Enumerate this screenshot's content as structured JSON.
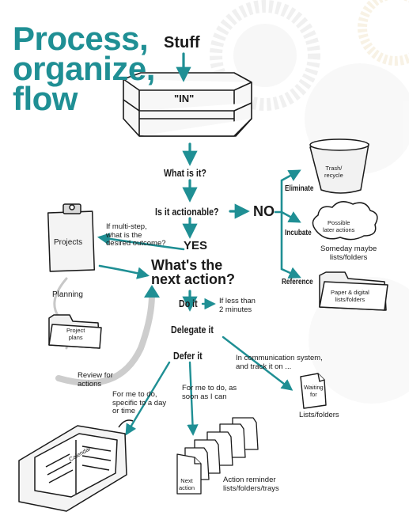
{
  "title": "Process,\norganize,\nflow",
  "nodes": {
    "stuff": "Stuff",
    "in_tray": "\"IN\"",
    "what_is_it": "What is it?",
    "actionable": "Is it actionable?",
    "no": "NO",
    "yes": "YES",
    "next_action": "What's the\nnext action?",
    "do_it": "Do it",
    "delegate_it": "Delegate it",
    "defer_it": "Defer it"
  },
  "no_branch": {
    "eliminate": "Eliminate",
    "incubate": "Incubate",
    "reference": "Reference",
    "trash": "Trash/\nrecycle",
    "possible_later": "Possible\nlater actions",
    "someday": "Someday maybe\nlists/folders",
    "paper_digital": "Paper & digital\nlists/folders"
  },
  "projects": {
    "label": "Projects",
    "question": "If multi-step,\nwhat is the\ndesired outcome?",
    "planning": "Planning",
    "project_plans": "Project\nplans",
    "review": "Review for\nactions"
  },
  "actions": {
    "do_note": "If less than\n2 minutes",
    "delegate_note": "In communication system,\nand track it on ...",
    "waiting_for": "Waiting\nfor",
    "lists_folders": "Lists/folders",
    "defer_day": "For me to do,\nspecific to a day\nor time",
    "defer_asap": "For me to do, as\nsoon as I can",
    "calendar": "Calendar",
    "next_action_doc": "Next\naction",
    "action_reminder": "Action reminder\nlists/folders/trays"
  },
  "colors": {
    "accent": "#1f8f94",
    "ink": "#1a1a1a",
    "background_watermark": "#c9c9c9"
  },
  "icons": [
    "in-tray-icon",
    "trash-bin-icon",
    "cloud-icon",
    "folder-icon",
    "clipboard-icon",
    "document-icon",
    "calendar-planner-icon",
    "stacked-folders-icon"
  ]
}
